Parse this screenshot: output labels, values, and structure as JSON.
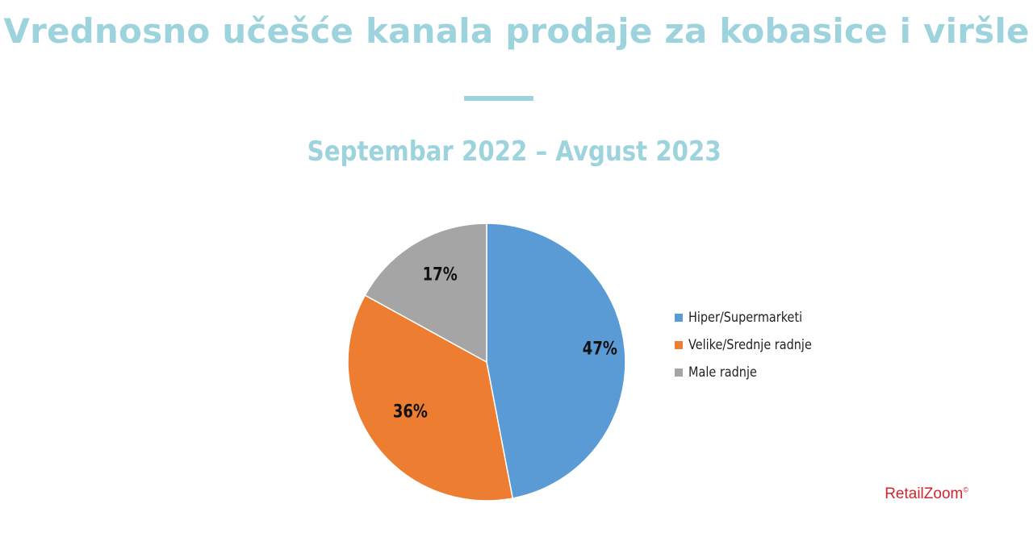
{
  "header": {
    "title": "Vrednosno učešće kanala prodaje za kobasice i viršle",
    "subtitle": "Septembar 2022 – Avgust 2023"
  },
  "chart_data": {
    "type": "pie",
    "title": "",
    "series": [
      {
        "name": "Hiper/Supermarketi",
        "value": 47,
        "label": "47%",
        "color": "#5b9bd5"
      },
      {
        "name": "Velike/Srednje radnje",
        "value": 36,
        "label": "36%",
        "color": "#ed7d31"
      },
      {
        "name": "Male radnje",
        "value": 17,
        "label": "17%",
        "color": "#a5a5a5"
      }
    ],
    "start_angle": "12 o'clock",
    "direction": "clockwise",
    "legend": "right"
  },
  "branding": {
    "logo_text": "RetailZoom",
    "logo_mark": "©",
    "color": "#d1262e"
  }
}
